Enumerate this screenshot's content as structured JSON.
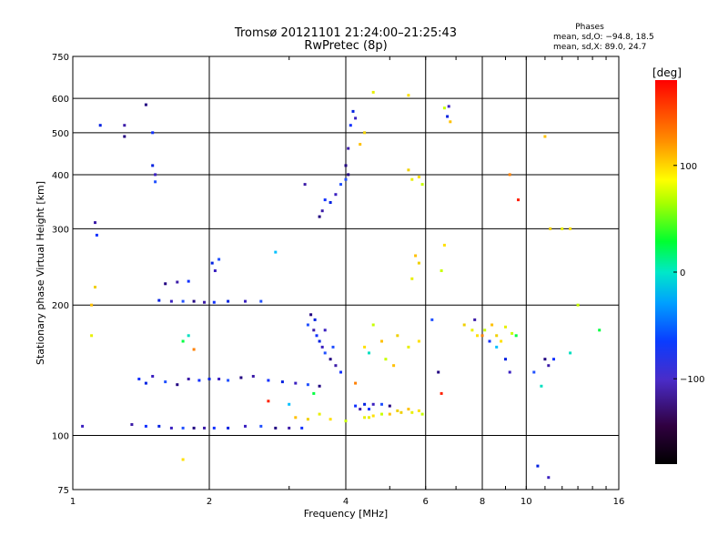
{
  "chart_data": {
    "type": "scatter",
    "title": "Tromsø 20121101 21:24:00–21:25:43",
    "subtitle": "RwPretec (8p)",
    "xlabel": "Frequency [MHz]",
    "ylabel": "Stationary phase Virtual Height [km]",
    "x_scale": "log",
    "y_scale": "log",
    "xlim": [
      1,
      16
    ],
    "ylim": [
      75,
      750
    ],
    "x_ticks": [
      1,
      2,
      4,
      6,
      8,
      10,
      16
    ],
    "y_ticks": [
      75,
      100,
      200,
      300,
      400,
      500,
      600,
      750
    ],
    "x_tick_labels": [
      "1",
      "2",
      "4",
      "6",
      "8",
      "10",
      "16"
    ],
    "y_tick_labels": [
      "75",
      "100",
      "200",
      "300",
      "400",
      "500",
      "600",
      "750"
    ],
    "grid": true,
    "stats_header": "Phases",
    "stats_o": "mean, sd,O: −94.8, 18.5",
    "stats_x": "mean, sd,X:  89.0, 24.7",
    "colorbar": {
      "label": "[deg]",
      "range": [
        -180,
        180
      ],
      "ticks": [
        100,
        0,
        -100
      ],
      "tick_labels": [
        "100",
        "0",
        "−100"
      ],
      "colormap": "rainbow"
    },
    "series": [
      {
        "points": [
          [
            1.4,
            135
          ],
          [
            1.45,
            132
          ],
          [
            1.5,
            137
          ],
          [
            1.6,
            133
          ],
          [
            1.7,
            131
          ],
          [
            1.8,
            135
          ],
          [
            1.9,
            134
          ],
          [
            2.0,
            135
          ],
          [
            2.1,
            135
          ],
          [
            2.2,
            134
          ],
          [
            2.35,
            136
          ],
          [
            2.5,
            137
          ],
          [
            2.7,
            134
          ],
          [
            2.9,
            133
          ],
          [
            3.1,
            132
          ],
          [
            3.3,
            131
          ],
          [
            3.5,
            130
          ],
          [
            1.35,
            106
          ],
          [
            1.45,
            105
          ],
          [
            1.55,
            105
          ],
          [
            1.65,
            104
          ],
          [
            1.75,
            104
          ],
          [
            1.85,
            104
          ],
          [
            1.95,
            104
          ],
          [
            2.05,
            104
          ],
          [
            2.2,
            104
          ],
          [
            2.4,
            105
          ],
          [
            2.6,
            105
          ],
          [
            2.8,
            104
          ],
          [
            3.0,
            104
          ],
          [
            3.2,
            104
          ],
          [
            1.55,
            205
          ],
          [
            1.65,
            204
          ],
          [
            1.75,
            204
          ],
          [
            1.85,
            204
          ],
          [
            1.95,
            203
          ],
          [
            2.05,
            203
          ],
          [
            2.2,
            204
          ],
          [
            2.4,
            204
          ],
          [
            2.6,
            204
          ],
          [
            1.6,
            224
          ],
          [
            1.7,
            226
          ],
          [
            1.8,
            227
          ],
          [
            2.03,
            250
          ],
          [
            2.06,
            240
          ],
          [
            2.1,
            255
          ],
          [
            1.3,
            490
          ],
          [
            1.3,
            520
          ],
          [
            1.5,
            500
          ],
          [
            1.5,
            420
          ],
          [
            1.52,
            400
          ],
          [
            1.52,
            385
          ],
          [
            1.45,
            580
          ],
          [
            1.12,
            310
          ],
          [
            1.13,
            290
          ],
          [
            1.15,
            520
          ],
          [
            1.05,
            105
          ],
          [
            3.3,
            180
          ],
          [
            3.35,
            190
          ],
          [
            3.4,
            175
          ],
          [
            3.45,
            170
          ],
          [
            3.5,
            165
          ],
          [
            3.55,
            160
          ],
          [
            3.6,
            155
          ],
          [
            3.7,
            150
          ],
          [
            3.8,
            145
          ],
          [
            3.9,
            140
          ],
          [
            3.42,
            185
          ],
          [
            3.6,
            175
          ],
          [
            3.75,
            160
          ],
          [
            3.5,
            320
          ],
          [
            3.55,
            330
          ],
          [
            3.6,
            350
          ],
          [
            3.7,
            345
          ],
          [
            3.8,
            360
          ],
          [
            3.9,
            380
          ],
          [
            4.0,
            420
          ],
          [
            4.05,
            460
          ],
          [
            4.1,
            520
          ],
          [
            4.15,
            560
          ],
          [
            4.2,
            540
          ],
          [
            4.0,
            390
          ],
          [
            4.05,
            400
          ],
          [
            3.25,
            380
          ],
          [
            4.2,
            117
          ],
          [
            4.4,
            118
          ],
          [
            4.6,
            118
          ],
          [
            4.8,
            118
          ],
          [
            5.0,
            117
          ],
          [
            4.3,
            115
          ],
          [
            4.5,
            115
          ],
          [
            6.7,
            545
          ],
          [
            6.75,
            575
          ],
          [
            6.2,
            185
          ],
          [
            6.4,
            140
          ],
          [
            7.7,
            185
          ],
          [
            8.3,
            165
          ],
          [
            9.0,
            150
          ],
          [
            9.2,
            140
          ],
          [
            10.4,
            140
          ],
          [
            11.0,
            150
          ],
          [
            11.2,
            145
          ],
          [
            11.5,
            150
          ],
          [
            10.6,
            85
          ],
          [
            11.2,
            80
          ]
        ]
      },
      {
        "points": [
          [
            4.5,
            110
          ],
          [
            4.6,
            111
          ],
          [
            4.8,
            112
          ],
          [
            5.0,
            112
          ],
          [
            5.3,
            113
          ],
          [
            5.6,
            113
          ],
          [
            5.8,
            114
          ],
          [
            5.9,
            112
          ],
          [
            5.5,
            115
          ],
          [
            5.2,
            114
          ],
          [
            4.4,
            110
          ],
          [
            4.4,
            160
          ],
          [
            4.6,
            180
          ],
          [
            4.8,
            165
          ],
          [
            5.2,
            170
          ],
          [
            5.5,
            160
          ],
          [
            5.8,
            165
          ],
          [
            4.9,
            150
          ],
          [
            5.1,
            145
          ],
          [
            5.5,
            410
          ],
          [
            5.6,
            390
          ],
          [
            5.8,
            395
          ],
          [
            5.9,
            380
          ],
          [
            4.3,
            470
          ],
          [
            4.4,
            500
          ],
          [
            4.6,
            620
          ],
          [
            5.5,
            610
          ],
          [
            6.6,
            570
          ],
          [
            6.8,
            530
          ],
          [
            7.3,
            180
          ],
          [
            7.6,
            175
          ],
          [
            7.8,
            170
          ],
          [
            8.1,
            175
          ],
          [
            8.4,
            180
          ],
          [
            8.6,
            170
          ],
          [
            9.0,
            178
          ],
          [
            8.8,
            165
          ],
          [
            9.3,
            172
          ],
          [
            5.7,
            260
          ],
          [
            5.8,
            250
          ],
          [
            5.6,
            230
          ],
          [
            6.6,
            275
          ],
          [
            6.5,
            240
          ],
          [
            11.0,
            490
          ],
          [
            11.3,
            300
          ],
          [
            12.0,
            300
          ],
          [
            12.5,
            300
          ],
          [
            13.0,
            200
          ],
          [
            3.1,
            110
          ],
          [
            3.3,
            109
          ],
          [
            3.5,
            112
          ],
          [
            3.7,
            109
          ],
          [
            4.0,
            108
          ],
          [
            1.1,
            200
          ],
          [
            1.12,
            220
          ],
          [
            1.1,
            170
          ],
          [
            1.75,
            88
          ]
        ]
      },
      {
        "points": [
          [
            1.75,
            165
          ],
          [
            1.8,
            170
          ],
          [
            1.85,
            158
          ],
          [
            2.7,
            120
          ],
          [
            3.0,
            118
          ],
          [
            3.4,
            125
          ],
          [
            4.5,
            155
          ],
          [
            4.2,
            132
          ],
          [
            6.5,
            125
          ],
          [
            8.6,
            160
          ],
          [
            9.5,
            170
          ],
          [
            10.8,
            130
          ],
          [
            9.2,
            400
          ],
          [
            9.6,
            350
          ],
          [
            2.8,
            265
          ],
          [
            14.5,
            175
          ],
          [
            12.5,
            155
          ],
          [
            8.0,
            170
          ]
        ]
      }
    ]
  }
}
